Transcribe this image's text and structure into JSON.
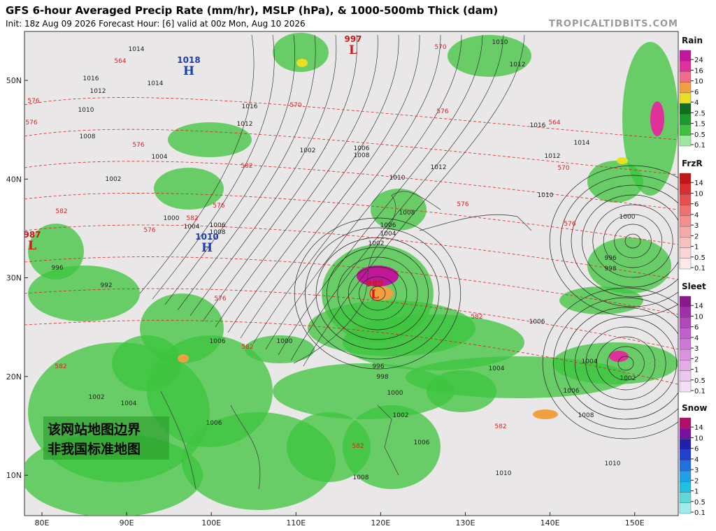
{
  "header": {
    "title": "GFS 6-hour Averaged Precip Rate (mm/hr), MSLP (hPa), & 1000-500mb Thick (dam)",
    "subtitle": "Init: 18z Aug 09 2026   Forecast Hour: [6]   valid at 00z Mon, Aug 10 2026",
    "source": "TROPICALTIDBITS.COM"
  },
  "axes": {
    "lat_labels": [
      "50N",
      "40N",
      "30N",
      "20N",
      "10N"
    ],
    "lon_labels": [
      "80E",
      "90E",
      "100E",
      "110E",
      "120E",
      "130E",
      "140E",
      "150E"
    ]
  },
  "notice": [
    "该网站地图边界",
    "非我国标准地图"
  ],
  "pressure_centers": [
    {
      "symbol": "H",
      "value": 1018
    },
    {
      "symbol": "H",
      "value": 1010
    },
    {
      "symbol": "L",
      "value": 997
    },
    {
      "symbol": "L",
      "value": 987
    },
    {
      "symbol": "L",
      "value": 985
    }
  ],
  "isobar_labels": [
    1014,
    1016,
    1012,
    1014,
    1010,
    1008,
    1004,
    1002,
    1012,
    1016,
    1002,
    1006,
    1008,
    1010,
    1012,
    1016,
    1014,
    1010,
    1012,
    1008,
    1006,
    1004,
    1002,
    1000,
    1006,
    996,
    998,
    1004,
    1006,
    1006,
    1008,
    1004,
    1002,
    1000,
    996,
    998,
    1010,
    1010,
    1008,
    1006,
    1002,
    1000,
    1002,
    1004,
    1006,
    992,
    996,
    1000,
    1004,
    1006,
    1008,
    1012,
    1010
  ],
  "thickness_labels": [
    576,
    576,
    570,
    564,
    570,
    576,
    564,
    576,
    582,
    576,
    582,
    576,
    582,
    576,
    576,
    570,
    582,
    582,
    582,
    582,
    582,
    576
  ],
  "legends": [
    {
      "title": "Rain",
      "ticks": [
        24,
        16,
        10,
        6,
        4,
        2.5,
        1.5,
        0.5,
        0.1
      ],
      "colors": [
        "#c0189a",
        "#e0309a",
        "#f06c8a",
        "#f0a040",
        "#e8e020",
        "#0e6e1e",
        "#1a9a2a",
        "#3ec23e",
        "#9ee89e"
      ]
    },
    {
      "title": "FrzR",
      "ticks": [
        14,
        10,
        6,
        4,
        3,
        2,
        1,
        0.5,
        0.1
      ],
      "colors": [
        "#c01818",
        "#d83030",
        "#e85050",
        "#ee7070",
        "#f29090",
        "#f4aaaa",
        "#f6c0c0",
        "#f8d4d4",
        "#fbe8e8"
      ]
    },
    {
      "title": "Sleet",
      "ticks": [
        14,
        10,
        6,
        4,
        3,
        2,
        1,
        0.5,
        0.1
      ],
      "colors": [
        "#8a1a8a",
        "#a030a8",
        "#b048b8",
        "#c060c8",
        "#cc7ad4",
        "#d894dc",
        "#e2ace6",
        "#ecc8ee",
        "#f4e0f4"
      ]
    },
    {
      "title": "Snow",
      "ticks": [
        14,
        10,
        6,
        4,
        3,
        2,
        1,
        0.5,
        0.1
      ],
      "colors": [
        "#b0106a",
        "#7a10a0",
        "#2020b0",
        "#2040d0",
        "#2070e0",
        "#20a0e8",
        "#20c0e0",
        "#60d8d8",
        "#a0ecec"
      ]
    }
  ]
}
